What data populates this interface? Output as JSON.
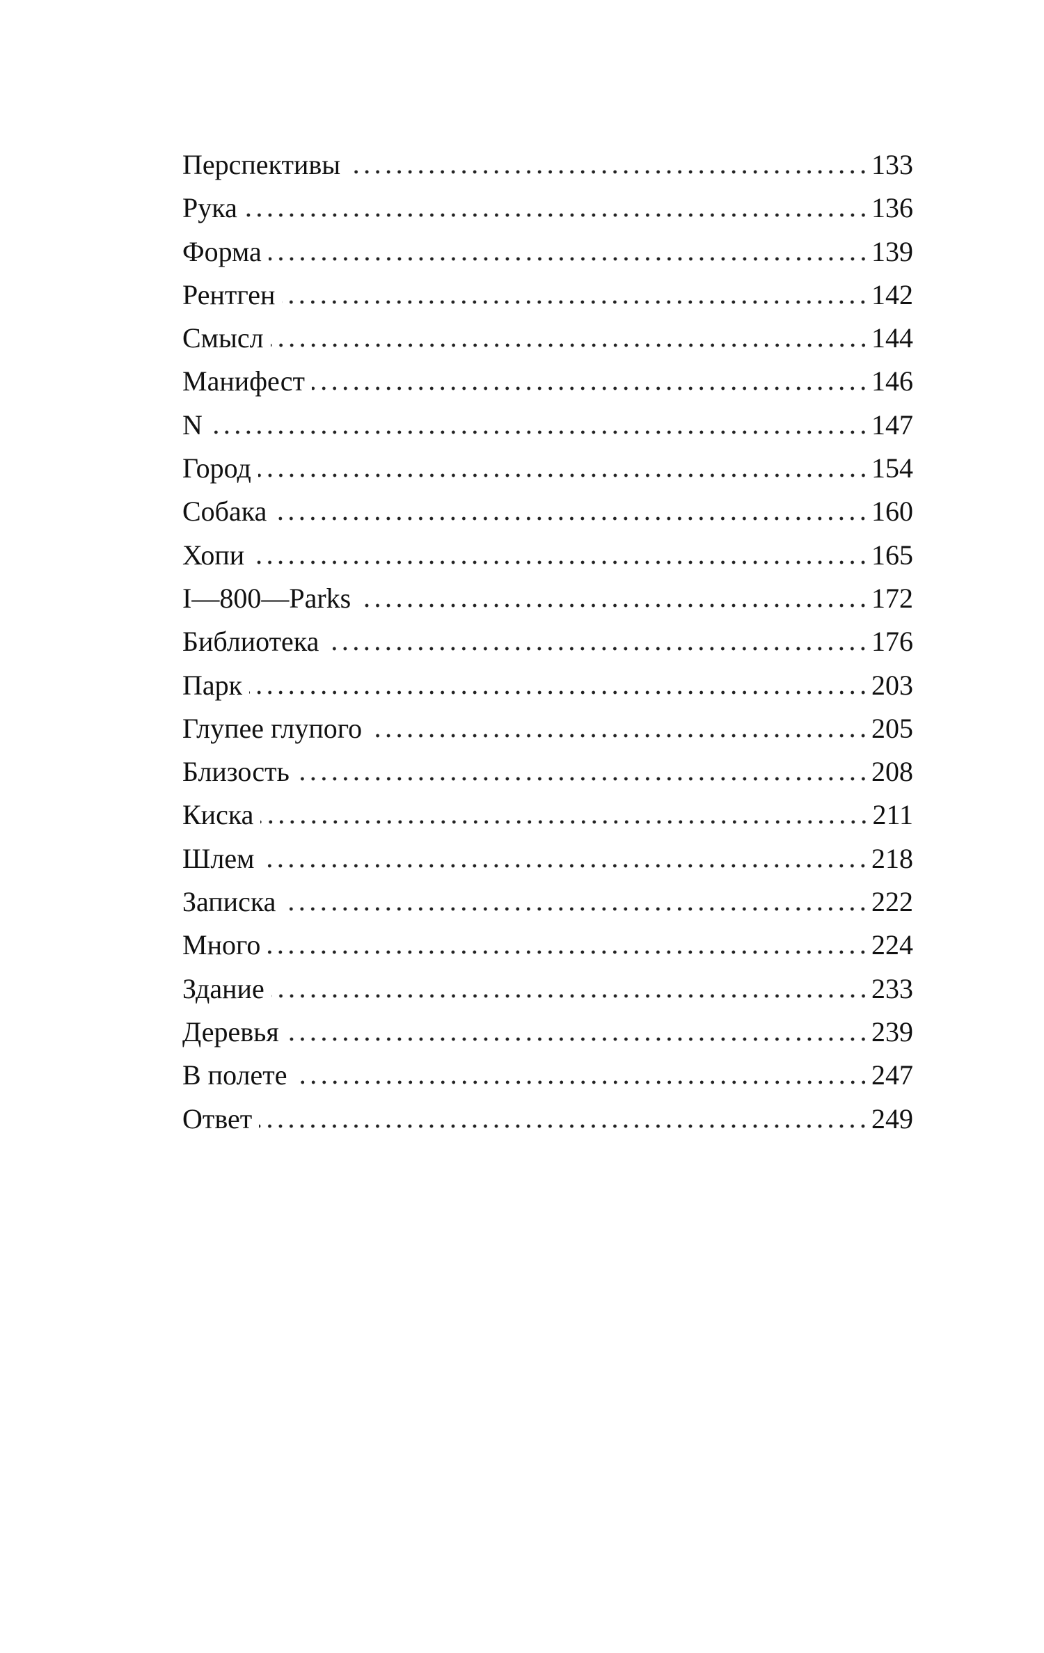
{
  "toc": [
    {
      "title": "Перспективы",
      "page": "133"
    },
    {
      "title": "Рука",
      "page": "136"
    },
    {
      "title": "Форма",
      "page": "139"
    },
    {
      "title": "Рентген",
      "page": "142"
    },
    {
      "title": "Смысл",
      "page": "144"
    },
    {
      "title": "Манифест",
      "page": "146"
    },
    {
      "title": "N",
      "page": "147"
    },
    {
      "title": "Город",
      "page": "154"
    },
    {
      "title": "Собака",
      "page": "160"
    },
    {
      "title": "Хопи",
      "page": "165"
    },
    {
      "title": "I—800—Parks",
      "page": "172"
    },
    {
      "title": "Библиотека",
      "page": "176"
    },
    {
      "title": "Парк",
      "page": "203"
    },
    {
      "title": "Глупее глупого",
      "page": "205"
    },
    {
      "title": "Близость",
      "page": "208"
    },
    {
      "title": "Киска",
      "page": "211"
    },
    {
      "title": "Шлем",
      "page": "218"
    },
    {
      "title": "Записка",
      "page": "222"
    },
    {
      "title": "Много",
      "page": "224"
    },
    {
      "title": "Здание",
      "page": "233"
    },
    {
      "title": "Деревья",
      "page": "239"
    },
    {
      "title": "В полете",
      "page": "247"
    },
    {
      "title": "Ответ",
      "page": "249"
    }
  ]
}
